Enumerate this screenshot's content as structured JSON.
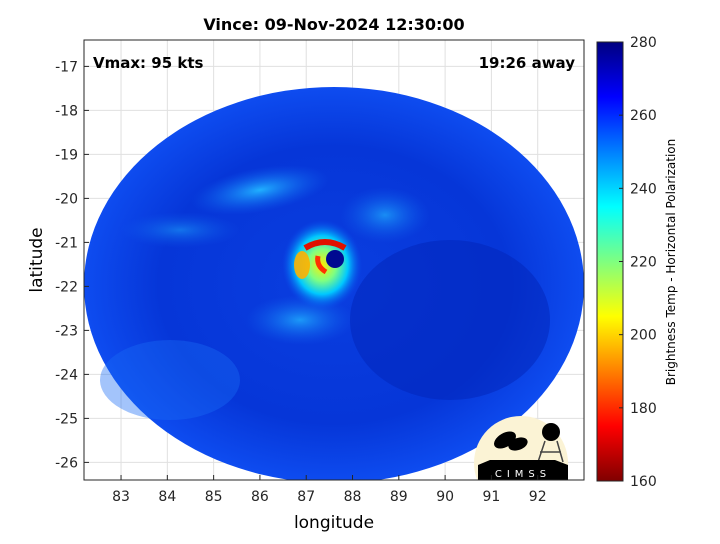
{
  "title": "Vince: 09-Nov-2024 12:30:00",
  "annotations": {
    "vmax": "Vmax: 95 kts",
    "time_away": "19:26 away"
  },
  "axes": {
    "xlabel": "longitude",
    "ylabel": "latitude",
    "xticks": [
      "83",
      "84",
      "85",
      "86",
      "87",
      "88",
      "89",
      "90",
      "91",
      "92"
    ],
    "yticks": [
      "-17",
      "-18",
      "-19",
      "-20",
      "-21",
      "-22",
      "-23",
      "-24",
      "-25",
      "-26"
    ],
    "xlim": [
      82.2,
      93.0
    ],
    "ylim": [
      -26.4,
      -16.4
    ],
    "grid": true
  },
  "colorbar": {
    "label": "Brightness Temp - Horizontal Polarization",
    "ticks": [
      "280",
      "260",
      "240",
      "220",
      "200",
      "180",
      "160"
    ],
    "range": [
      160,
      280
    ],
    "colormap": "jet"
  },
  "storm_center": {
    "lon": 87.5,
    "lat": -21.6
  },
  "logo": {
    "text": "CIMSS"
  }
}
